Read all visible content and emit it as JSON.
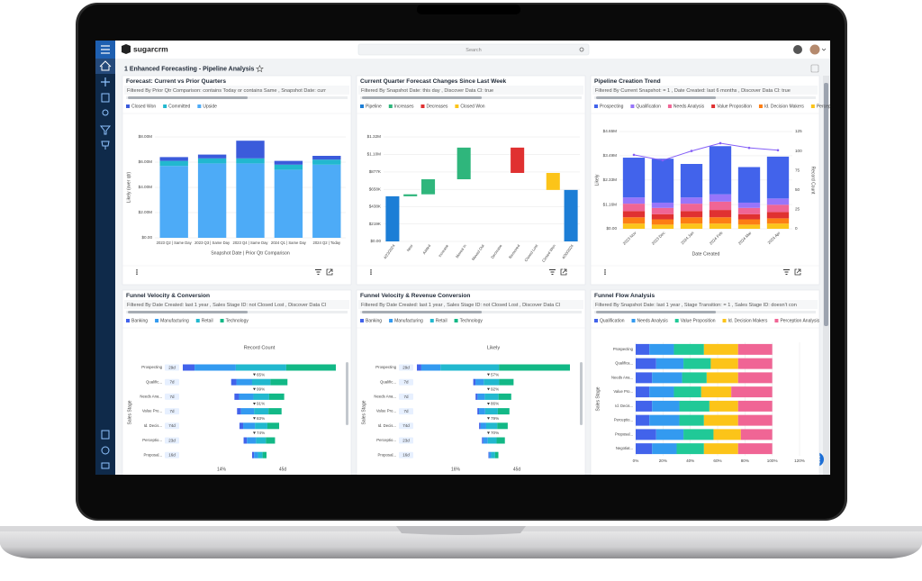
{
  "app": {
    "logo": "sugarcrm",
    "search_placeholder": "Search"
  },
  "dashboard": {
    "title": "1 Enhanced Forecasting - Pipeline Analysis"
  },
  "dashlets": [
    {
      "title": "Forecast: Current vs Prior Quarters",
      "filter": "Filtered By Prior Qtr Comparison: contains Today or contains Same , Snapshot Date: curr",
      "chart": {
        "type": "stacked_bar",
        "ylabel": "Likely (over qtr)",
        "xlabel": "Snapshot Date | Prior Qtr Comparison",
        "categories": [
          "2023 Q2 | Same Day",
          "2023 Q3 | Same Day",
          "2023 Q4 | Same Day",
          "2024 Q1 | Same Day",
          "2024 Q2 | Today"
        ],
        "series": [
          {
            "name": "Closed Won",
            "color": "#3b5bdb",
            "values": [
              300000,
              300000,
              1400000,
              300000,
              300000
            ]
          },
          {
            "name": "Committed",
            "color": "#22b8cf",
            "values": [
              400000,
              400000,
              400000,
              400000,
              400000
            ]
          },
          {
            "name": "Upside",
            "color": "#4dabf7",
            "values": [
              5700000,
              5900000,
              5900000,
              5400000,
              5800000
            ]
          }
        ],
        "ylim": [
          0,
          8000000
        ],
        "yticks": [
          {
            "value": 0,
            "label": "$0.00"
          },
          {
            "value": 2000000,
            "label": "$2.00M"
          },
          {
            "value": 4000000,
            "label": "$4.00M"
          },
          {
            "value": 6000000,
            "label": "$6.00M"
          },
          {
            "value": 8000000,
            "label": "$8.00M"
          }
        ],
        "grid": true
      }
    },
    {
      "title": "Current Quarter Forecast Changes Since Last Week",
      "filter": "Filtered By Snapshot Date: this day , Discover Data Cl: true",
      "chart": {
        "type": "waterfall",
        "legend": [
          {
            "name": "Pipeline",
            "color": "#1c7ed6"
          },
          {
            "name": "Increases",
            "color": "#2fb67c"
          },
          {
            "name": "Decreases",
            "color": "#e03131"
          },
          {
            "name": "Closed Won",
            "color": "#fcc419"
          }
        ],
        "categories": [
          "4/23/2024",
          "New",
          "Added",
          "Increase",
          "Moved In",
          "Moved Out",
          "Decrease",
          "Removed",
          "Closed Lost",
          "Closed Won",
          "4/30/2024"
        ],
        "values": [
          570000,
          25000,
          190000,
          0,
          400000,
          0,
          0,
          -320000,
          0,
          -215000,
          650000
        ],
        "ylim": [
          0,
          1320000
        ],
        "yticks": [
          {
            "value": 0,
            "label": "$0.00"
          },
          {
            "value": 219000,
            "label": "$219K"
          },
          {
            "value": 438000,
            "label": "$438K"
          },
          {
            "value": 658000,
            "label": "$658K"
          },
          {
            "value": 877000,
            "label": "$877K"
          },
          {
            "value": 1100000,
            "label": "$1.10M"
          },
          {
            "value": 1320000,
            "label": "$1.32M"
          }
        ],
        "grid": true
      }
    },
    {
      "title": "Pipeline Creation Trend",
      "filter": "Filtered By Current Snapshot: = 1 , Date Created: last 6 months , Discover Data Cl: true",
      "chart": {
        "type": "stacked_bar_line",
        "ylabel": "Likely",
        "y2label": "Record Count",
        "xlabel": "Date Created",
        "categories": [
          "2023 Nov",
          "2023 Dec",
          "2024 Jan",
          "2024 Feb",
          "2024 Mar",
          "2024 Apr"
        ],
        "series": [
          {
            "name": "Prospecting",
            "color": "#4263eb",
            "values": [
              1900000,
              2100000,
              1600000,
              2300000,
              1700000,
              2000000
            ]
          },
          {
            "name": "Qualification",
            "color": "#9775fa",
            "values": [
              300000,
              250000,
              300000,
              350000,
              250000,
              300000
            ]
          },
          {
            "name": "Needs Analysis",
            "color": "#f06595",
            "values": [
              350000,
              300000,
              350000,
              400000,
              300000,
              350000
            ]
          },
          {
            "name": "Value Proposition",
            "color": "#e03131",
            "values": [
              300000,
              250000,
              300000,
              350000,
              250000,
              300000
            ]
          },
          {
            "name": "Id. Decision Makers",
            "color": "#fd7e14",
            "values": [
              300000,
              250000,
              300000,
              300000,
              250000,
              250000
            ]
          },
          {
            "name": "Perception Analysis",
            "color": "#fcc419",
            "values": [
              250000,
              200000,
              250000,
              250000,
              200000,
              250000
            ]
          }
        ],
        "line": {
          "color": "#845ef7",
          "values": [
            95,
            88,
            100,
            110,
            104,
            101
          ]
        },
        "ylim": [
          0,
          4650000
        ],
        "yticks": [
          {
            "value": 0,
            "label": "$0.00"
          },
          {
            "value": 1160000,
            "label": "$1.16M"
          },
          {
            "value": 2330000,
            "label": "$2.33M"
          },
          {
            "value": 3490000,
            "label": "$3.49M"
          },
          {
            "value": 4650000,
            "label": "$4.65M"
          }
        ],
        "y2lim": [
          0,
          125
        ],
        "y2ticks": [
          0,
          25,
          50,
          75,
          100,
          125
        ],
        "grid": true
      }
    },
    {
      "title": "Funnel Velocity & Conversion",
      "filter": "Filtered By Date Created: last 1 year , Sales Stage ID: not Closed Lost , Discover Data Cl",
      "chart": {
        "type": "funnel",
        "chart_title": "Record Count",
        "ylabel": "Sales Stage",
        "stages": [
          "Prospecting",
          "Qualific...",
          "Needs Ana...",
          "Value Pro...",
          "Id. Decis...",
          "Perceptio...",
          "Proposal..."
        ],
        "days": [
          "29d",
          "7d",
          "7d",
          "7d",
          "74d",
          "23d",
          "16d"
        ],
        "conversions": [
          "65%",
          "99%",
          "91%",
          "83%",
          "74%"
        ],
        "footer": [
          "14%",
          "45d"
        ],
        "series": [
          {
            "name": "Banking",
            "color": "#4263eb",
            "values": [
              90,
              40,
              35,
              30,
              28,
              25,
              15
            ]
          },
          {
            "name": "Manufacturing",
            "color": "#339af0",
            "values": [
              315,
              120,
              110,
              100,
              90,
              70,
              30
            ]
          },
          {
            "name": "Retail",
            "color": "#22b8cf",
            "values": [
              385,
              140,
              120,
              110,
              95,
              75,
              35
            ]
          },
          {
            "name": "Technology",
            "color": "#12b886",
            "values": [
              379,
              130,
              115,
              100,
              90,
              70,
              30
            ]
          }
        ]
      }
    },
    {
      "title": "Funnel Velocity & Revenue Conversion",
      "filter": "Filtered By Date Created: last 1 year , Sales Stage ID: not Closed Lost , Discover Data Cl",
      "chart": {
        "type": "funnel",
        "chart_title": "Likely",
        "ylabel": "Sales Stage",
        "stages": [
          "Prospecting",
          "Qualific...",
          "Needs Ana...",
          "Value Pro...",
          "Id. Decis...",
          "Perceptio...",
          "Proposal..."
        ],
        "days": [
          "29d",
          "7d",
          "7d",
          "7d",
          "74d",
          "23d",
          "16d"
        ],
        "conversions": [
          "57%",
          "92%",
          "86%",
          "79%",
          "70%"
        ],
        "footer": [
          "16%",
          "45d"
        ],
        "series": [
          {
            "name": "Banking",
            "color": "#4263eb",
            "values": [
              800000,
              400000,
              350000,
              300000,
              280000,
              250000,
              150000
            ]
          },
          {
            "name": "Manufacturing",
            "color": "#339af0",
            "values": [
              3470000,
              1500000,
              1300000,
              1100000,
              1000000,
              800000,
              350000
            ]
          },
          {
            "name": "Retail",
            "color": "#22b8cf",
            "values": [
              10580000,
              2800000,
              2500000,
              2300000,
              2000000,
              1600000,
              700000
            ]
          },
          {
            "name": "Technology",
            "color": "#12b886",
            "values": [
              12850000,
              2600000,
              2300000,
              2100000,
              1900000,
              1500000,
              600000
            ]
          }
        ]
      }
    },
    {
      "title": "Funnel Flow Analysis",
      "filter": "Filtered By Snapshot Date: last 1 year , Stage Transition: = 1 , Sales Stage ID: doesn't con",
      "chart": {
        "type": "hstacked",
        "ylabel": "Sales Stage",
        "categories": [
          "Prospecting",
          "Qualifica...",
          "Needs Ana...",
          "Value Pro...",
          "Id. Decis...",
          "Perceptio...",
          "Proposal...",
          "Negotiat..."
        ],
        "series": [
          {
            "name": "Qualification",
            "color": "#4263eb",
            "values": [
              10,
              15,
              12,
              10,
              12,
              10,
              15,
              12
            ]
          },
          {
            "name": "Needs Analysis",
            "color": "#339af0",
            "values": [
              18,
              20,
              22,
              18,
              20,
              22,
              20,
              18
            ]
          },
          {
            "name": "Value Proposition",
            "color": "#20c997",
            "values": [
              22,
              20,
              18,
              20,
              22,
              18,
              22,
              20
            ]
          },
          {
            "name": "Id. Decision Makers",
            "color": "#fcc419",
            "values": [
              25,
              20,
              23,
              22,
              21,
              25,
              20,
              25
            ]
          },
          {
            "name": "Perception Analysis",
            "color": "#f06595",
            "values": [
              25,
              25,
              25,
              30,
              25,
              25,
              23,
              25
            ]
          }
        ],
        "xlim": [
          0,
          120
        ],
        "xticks": [
          {
            "value": 0,
            "label": "0%"
          },
          {
            "value": 20,
            "label": "20%"
          },
          {
            "value": 40,
            "label": "40%"
          },
          {
            "value": 60,
            "label": "60%"
          },
          {
            "value": 80,
            "label": "80%"
          },
          {
            "value": 100,
            "label": "100%"
          },
          {
            "value": 120,
            "label": "120%"
          }
        ],
        "grid": true
      }
    }
  ]
}
